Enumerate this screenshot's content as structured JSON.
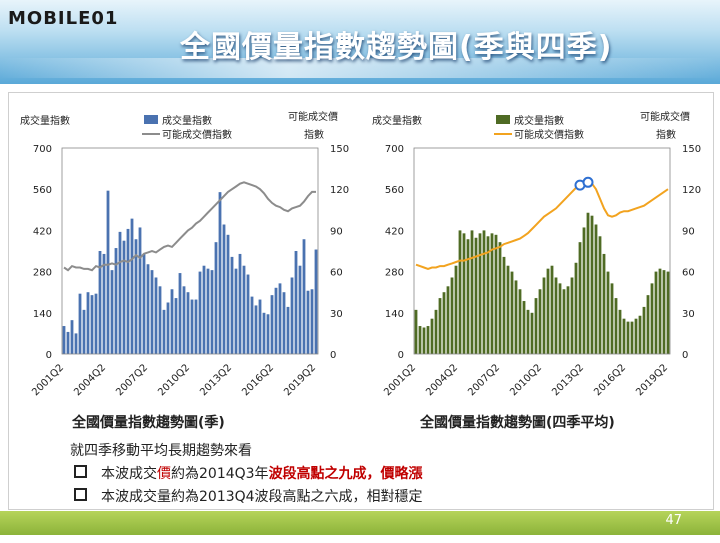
{
  "header": {
    "logo_text": "MOBILE01",
    "title": "全國價量指數趨勢圖(季與四季)"
  },
  "captions": {
    "left": "全國價量指數趨勢圖(季)",
    "right": "全國價量指數趨勢圖(四季平均)"
  },
  "notes": {
    "intro": "就四季移動平均長期趨勢來看",
    "bullet1": {
      "a": "本波成交",
      "b": "價",
      "c": "約為2014Q3年",
      "d": "波段高點之九成，價略漲"
    },
    "bullet2": "本波成交量約為2013Q4波段高點之六成，相對穩定"
  },
  "footer": {
    "page": "47"
  },
  "colors": {
    "bar_blue": "#4a72b0",
    "line_gray": "#8c8c8c",
    "bar_green": "#4f6b24",
    "line_orange": "#f2a31f",
    "marker": "#2e6fd1"
  },
  "chart_data": [
    {
      "type": "bar",
      "ylabel": "成交量指數",
      "y2label": "可能成交價指數",
      "ylim": [
        0,
        700
      ],
      "y2lim": [
        0,
        150
      ],
      "yticks": [
        "700",
        "560",
        "420",
        "280",
        "140",
        "0"
      ],
      "y2ticks": [
        "150",
        "120",
        "90",
        "60",
        "30",
        "0"
      ],
      "xticks": [
        "2001Q2",
        "2004Q2",
        "2007Q2",
        "2010Q2",
        "2013Q2",
        "2016Q2",
        "2019Q2"
      ],
      "grid": false,
      "legend": "top",
      "series": [
        {
          "name": "成交量指數",
          "kind": "bar",
          "axis": "left",
          "values": [
            95,
            75,
            115,
            70,
            205,
            150,
            210,
            200,
            205,
            350,
            340,
            555,
            285,
            360,
            415,
            385,
            425,
            460,
            390,
            430,
            340,
            305,
            285,
            260,
            230,
            150,
            175,
            220,
            190,
            275,
            230,
            210,
            185,
            185,
            280,
            300,
            290,
            285,
            380,
            550,
            440,
            405,
            330,
            290,
            340,
            300,
            270,
            195,
            165,
            185,
            140,
            135,
            200,
            225,
            240,
            210,
            160,
            260,
            350,
            300,
            390,
            215,
            220,
            355
          ]
        },
        {
          "name": "可能成交價指數",
          "kind": "line",
          "axis": "right",
          "values": [
            63,
            61,
            64,
            63,
            63,
            62,
            62,
            61,
            64,
            63,
            65,
            65,
            66,
            65,
            67,
            68,
            67,
            69,
            72,
            70,
            73,
            74,
            75,
            74,
            76,
            78,
            79,
            78,
            81,
            84,
            87,
            90,
            92,
            95,
            97,
            100,
            103,
            106,
            109,
            112,
            115,
            118,
            120,
            122,
            124,
            125,
            124,
            123,
            122,
            120,
            117,
            113,
            110,
            108,
            107,
            105,
            104,
            106,
            107,
            108,
            111,
            115,
            118,
            118
          ]
        }
      ]
    },
    {
      "type": "bar",
      "ylabel": "成交量指數",
      "y2label": "可能成交價指數",
      "ylim": [
        0,
        700
      ],
      "y2lim": [
        0,
        150
      ],
      "yticks": [
        "700",
        "560",
        "420",
        "280",
        "140",
        "0"
      ],
      "y2ticks": [
        "150",
        "120",
        "90",
        "60",
        "30",
        "0"
      ],
      "xticks": [
        "2001Q2",
        "2004Q2",
        "2007Q2",
        "2010Q2",
        "2013Q2",
        "2016Q2",
        "2019Q2"
      ],
      "grid": false,
      "legend": "top",
      "series": [
        {
          "name": "成交量指數",
          "kind": "bar",
          "axis": "left",
          "values": [
            150,
            95,
            90,
            95,
            120,
            150,
            190,
            210,
            230,
            260,
            300,
            420,
            410,
            390,
            420,
            395,
            410,
            420,
            400,
            410,
            405,
            380,
            330,
            300,
            280,
            250,
            220,
            180,
            150,
            140,
            190,
            220,
            260,
            290,
            300,
            260,
            240,
            220,
            230,
            260,
            310,
            380,
            430,
            480,
            470,
            440,
            400,
            340,
            280,
            240,
            190,
            150,
            120,
            110,
            110,
            120,
            130,
            160,
            200,
            240,
            280,
            290,
            285,
            280
          ]
        },
        {
          "name": "可能成交價指數",
          "kind": "line",
          "axis": "right",
          "values": [
            65,
            64,
            63,
            62,
            63,
            63,
            64,
            64,
            65,
            66,
            67,
            68,
            68,
            69,
            70,
            71,
            72,
            73,
            74,
            76,
            77,
            78,
            80,
            81,
            82,
            83,
            84,
            86,
            88,
            91,
            94,
            97,
            100,
            102,
            104,
            106,
            109,
            112,
            115,
            118,
            121,
            123,
            124,
            125,
            124,
            120,
            113,
            106,
            101,
            100,
            101,
            103,
            104,
            104,
            105,
            106,
            107,
            108,
            110,
            112,
            114,
            116,
            118,
            120
          ]
        }
      ],
      "markers": [
        {
          "series": 1,
          "index": 41
        },
        {
          "series": 1,
          "index": 43
        }
      ]
    }
  ]
}
